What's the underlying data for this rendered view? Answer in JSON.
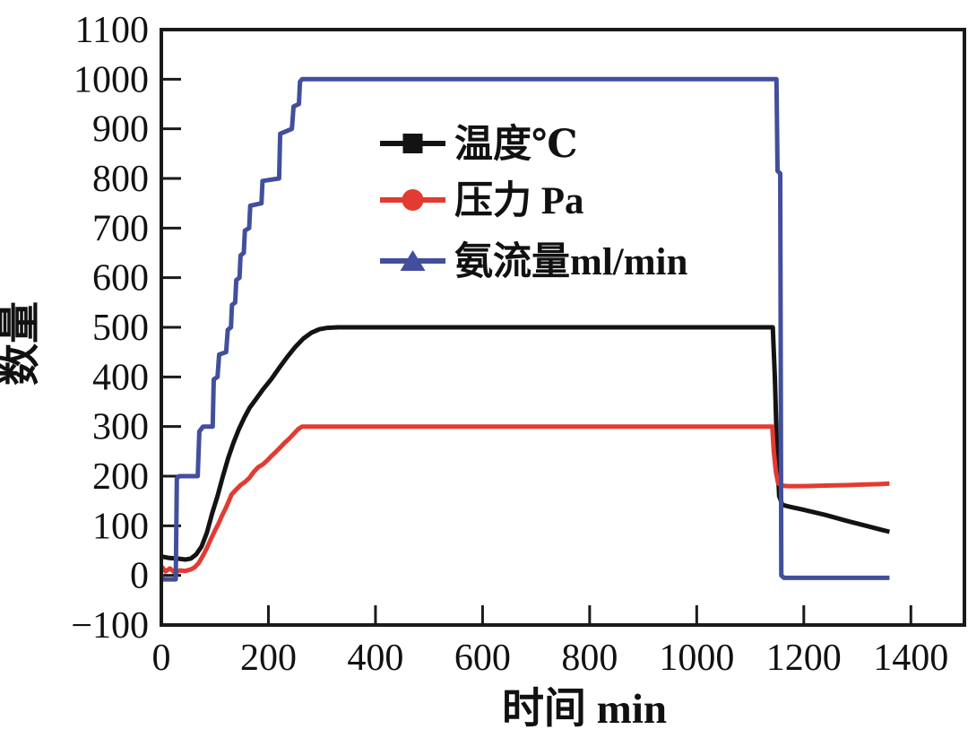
{
  "chart_data": {
    "type": "line",
    "title": "",
    "xlabel": "时间 min",
    "ylabel": "数量",
    "xlim": [
      0,
      1500
    ],
    "ylim": [
      -100,
      1100
    ],
    "grid": false,
    "legend_position": "inside upper-left area of plot",
    "x_ticks": [
      0,
      200,
      400,
      600,
      800,
      1000,
      1200,
      1400
    ],
    "x_tick_labels": [
      "0",
      "200",
      "400",
      "600",
      "800",
      "1000",
      "1200",
      "1400"
    ],
    "y_ticks": [
      1100,
      1000,
      900,
      800,
      700,
      600,
      500,
      400,
      300,
      200,
      100,
      0,
      -100
    ],
    "y_tick_labels": [
      "1100",
      "1000",
      "900",
      "800",
      "700",
      "600",
      "500",
      "400",
      "300",
      "200",
      "100",
      "0",
      "−100"
    ],
    "frame_color": "#1a1a1a",
    "series": [
      {
        "name": "温度℃",
        "color": "#151212",
        "marker": "square",
        "points": [
          [
            0,
            38
          ],
          [
            15,
            35
          ],
          [
            30,
            34
          ],
          [
            45,
            32
          ],
          [
            55,
            34
          ],
          [
            65,
            42
          ],
          [
            75,
            58
          ],
          [
            85,
            86
          ],
          [
            95,
            125
          ],
          [
            105,
            160
          ],
          [
            115,
            200
          ],
          [
            125,
            237
          ],
          [
            135,
            268
          ],
          [
            145,
            295
          ],
          [
            155,
            318
          ],
          [
            165,
            338
          ],
          [
            178,
            357
          ],
          [
            190,
            375
          ],
          [
            205,
            395
          ],
          [
            220,
            418
          ],
          [
            235,
            440
          ],
          [
            250,
            460
          ],
          [
            265,
            477
          ],
          [
            280,
            489
          ],
          [
            295,
            496
          ],
          [
            310,
            499
          ],
          [
            330,
            500
          ],
          [
            1142,
            500
          ],
          [
            1146,
            400
          ],
          [
            1150,
            250
          ],
          [
            1154,
            160
          ],
          [
            1160,
            142
          ],
          [
            1175,
            138
          ],
          [
            1200,
            132
          ],
          [
            1240,
            122
          ],
          [
            1280,
            110
          ],
          [
            1320,
            99
          ],
          [
            1345,
            92
          ],
          [
            1360,
            88
          ]
        ]
      },
      {
        "name": "压力 Pa",
        "color": "#e23b31",
        "marker": "circle",
        "points": [
          [
            0,
            18
          ],
          [
            8,
            8
          ],
          [
            16,
            14
          ],
          [
            25,
            6
          ],
          [
            35,
            10
          ],
          [
            45,
            9
          ],
          [
            55,
            12
          ],
          [
            62,
            16
          ],
          [
            70,
            25
          ],
          [
            78,
            40
          ],
          [
            85,
            55
          ],
          [
            92,
            72
          ],
          [
            100,
            90
          ],
          [
            107,
            105
          ],
          [
            114,
            122
          ],
          [
            120,
            135
          ],
          [
            126,
            150
          ],
          [
            131,
            163
          ],
          [
            139,
            172
          ],
          [
            148,
            182
          ],
          [
            156,
            188
          ],
          [
            164,
            196
          ],
          [
            173,
            209
          ],
          [
            181,
            218
          ],
          [
            190,
            224
          ],
          [
            198,
            232
          ],
          [
            206,
            241
          ],
          [
            215,
            250
          ],
          [
            223,
            259
          ],
          [
            231,
            268
          ],
          [
            240,
            277
          ],
          [
            248,
            286
          ],
          [
            256,
            295
          ],
          [
            263,
            300
          ],
          [
            1141,
            300
          ],
          [
            1144,
            250
          ],
          [
            1148,
            208
          ],
          [
            1152,
            186
          ],
          [
            1158,
            181
          ],
          [
            1170,
            180
          ],
          [
            1200,
            180
          ],
          [
            1240,
            181
          ],
          [
            1280,
            182
          ],
          [
            1310,
            183
          ],
          [
            1340,
            184
          ],
          [
            1360,
            185
          ]
        ]
      },
      {
        "name": "氨流量ml/min",
        "color": "#424f9c",
        "marker": "triangle",
        "points": [
          [
            0,
            0
          ],
          [
            3,
            -8
          ],
          [
            27,
            -8
          ],
          [
            29,
            195
          ],
          [
            33,
            200
          ],
          [
            68,
            200
          ],
          [
            71,
            290
          ],
          [
            78,
            300
          ],
          [
            96,
            300
          ],
          [
            98,
            395
          ],
          [
            105,
            400
          ],
          [
            108,
            445
          ],
          [
            121,
            450
          ],
          [
            124,
            495
          ],
          [
            130,
            500
          ],
          [
            132,
            545
          ],
          [
            138,
            550
          ],
          [
            140,
            595
          ],
          [
            146,
            600
          ],
          [
            148,
            645
          ],
          [
            154,
            650
          ],
          [
            156,
            695
          ],
          [
            164,
            700
          ],
          [
            166,
            745
          ],
          [
            187,
            750
          ],
          [
            189,
            795
          ],
          [
            220,
            800
          ],
          [
            222,
            890
          ],
          [
            244,
            900
          ],
          [
            247,
            945
          ],
          [
            257,
            950
          ],
          [
            259,
            995
          ],
          [
            263,
            1000
          ],
          [
            1149,
            1000
          ],
          [
            1151,
            815
          ],
          [
            1156,
            810
          ],
          [
            1158,
            0
          ],
          [
            1163,
            -5
          ],
          [
            1360,
            -5
          ]
        ]
      }
    ]
  }
}
